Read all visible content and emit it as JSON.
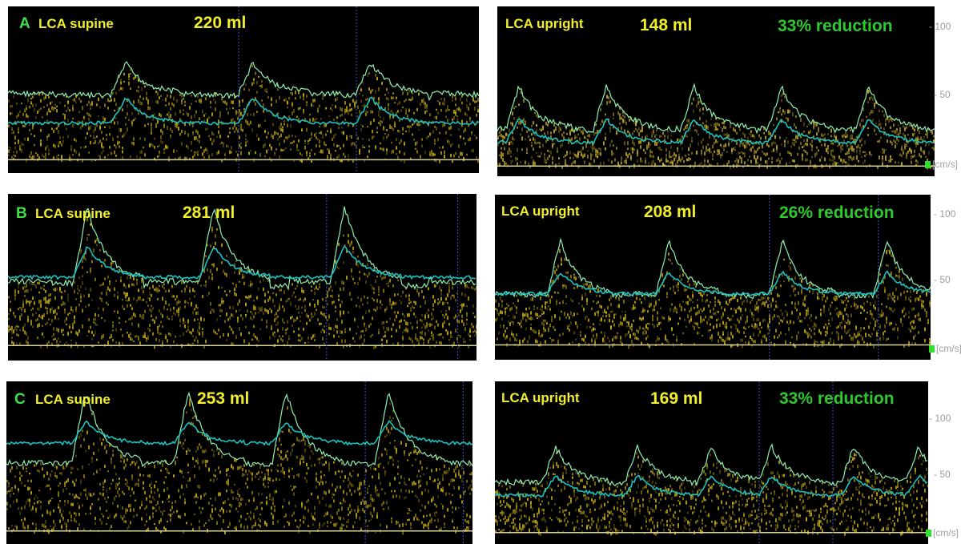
{
  "units": "[cm/s]",
  "colors": {
    "envelope": "#8ff0b2",
    "mean_trace": "#19c2c0",
    "spectrum": "#c9b020",
    "panel_letter": "#3fe04a",
    "label_yellow": "#f1ee2a",
    "reduction_green": "#2ec92e"
  },
  "rows": [
    {
      "letter": "A",
      "supine": {
        "label": "LCA supine",
        "volume": "220 ml"
      },
      "upright": {
        "label": "LCA upright",
        "volume": "148 ml",
        "reduction": "33% reduction",
        "ticks": [
          "100",
          "50"
        ]
      }
    },
    {
      "letter": "B",
      "supine": {
        "label": "LCA supine",
        "volume": "281 ml"
      },
      "upright": {
        "label": "LCA upright",
        "volume": "208 ml",
        "reduction": "26% reduction",
        "ticks": [
          "100",
          "50"
        ]
      }
    },
    {
      "letter": "C",
      "supine": {
        "label": "LCA supine",
        "volume": "253 ml"
      },
      "upright": {
        "label": "LCA upright",
        "volume": "169 ml",
        "reduction": "33% reduction",
        "ticks": [
          "100",
          "50"
        ]
      }
    }
  ]
}
